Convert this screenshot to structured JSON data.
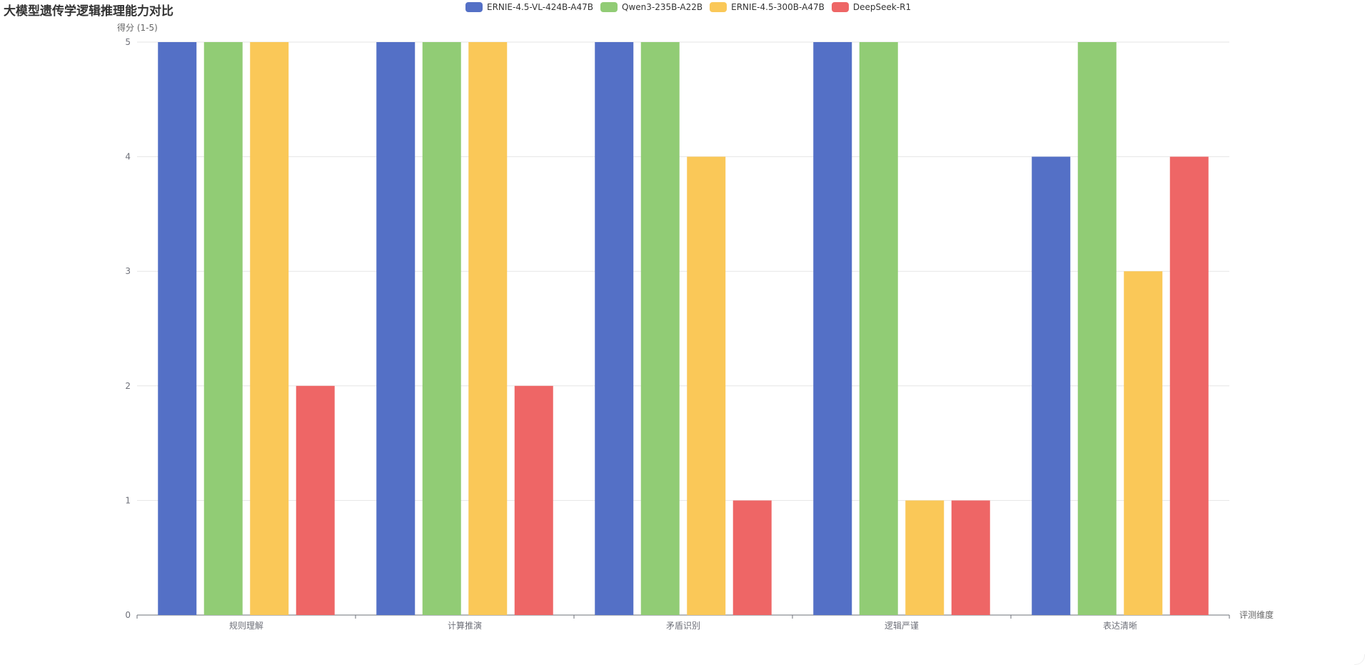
{
  "title": "大模型遗传学逻辑推理能力对比",
  "legend": [
    {
      "name": "ERNIE-4.5-VL-424B-A47B",
      "color": "#5470c6"
    },
    {
      "name": "Qwen3-235B-A22B",
      "color": "#91cc75"
    },
    {
      "name": "ERNIE-4.5-300B-A47B",
      "color": "#fac858"
    },
    {
      "name": "DeepSeek-R1",
      "color": "#ee6666"
    }
  ],
  "axis": {
    "ylabel": "得分 (1-5)",
    "xname": "评测维度"
  },
  "chart_data": {
    "type": "bar",
    "title": "大模型遗传学逻辑推理能力对比",
    "xlabel": "评测维度",
    "ylabel": "得分 (1-5)",
    "ylim": [
      0,
      5
    ],
    "yticks": [
      0,
      1,
      2,
      3,
      4,
      5
    ],
    "grid": true,
    "legend_position": "top",
    "categories": [
      "规则理解",
      "计算推演",
      "矛盾识别",
      "逻辑严谨",
      "表达清晰"
    ],
    "series": [
      {
        "name": "ERNIE-4.5-VL-424B-A47B",
        "color": "#5470c6",
        "values": [
          5,
          5,
          5,
          5,
          4
        ]
      },
      {
        "name": "Qwen3-235B-A22B",
        "color": "#91cc75",
        "values": [
          5,
          5,
          5,
          5,
          5
        ]
      },
      {
        "name": "ERNIE-4.5-300B-A47B",
        "color": "#fac858",
        "values": [
          5,
          5,
          4,
          1,
          3
        ]
      },
      {
        "name": "DeepSeek-R1",
        "color": "#ee6666",
        "values": [
          2,
          2,
          1,
          1,
          4
        ]
      }
    ]
  }
}
